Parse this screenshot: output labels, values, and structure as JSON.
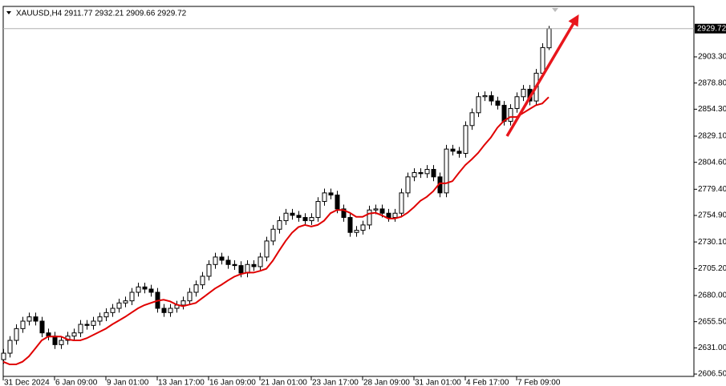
{
  "chart_data": {
    "type": "candlestick",
    "title": "XAUUSD,H4  2911.77 2932.21 2909.66 2929.72",
    "categories": [
      "31 Dec 2024",
      null,
      null,
      null,
      null,
      null,
      null,
      null,
      "6 Jan 09:00",
      null,
      null,
      null,
      null,
      null,
      null,
      null,
      "9 Jan 01:00",
      null,
      null,
      null,
      null,
      null,
      null,
      null,
      "13 Jan 17:00",
      null,
      null,
      null,
      null,
      null,
      null,
      null,
      "16 Jan 09:00",
      null,
      null,
      null,
      null,
      null,
      null,
      null,
      "21 Jan 01:00",
      null,
      null,
      null,
      null,
      null,
      null,
      null,
      "23 Jan 17:00",
      null,
      null,
      null,
      null,
      null,
      null,
      null,
      "28 Jan 09:00",
      null,
      null,
      null,
      null,
      null,
      null,
      null,
      "31 Jan 01:00",
      null,
      null,
      null,
      null,
      null,
      null,
      null,
      "4 Feb 17:00",
      null,
      null,
      null,
      null,
      null,
      null,
      null,
      "7 Feb 09:00",
      null,
      null,
      null,
      null,
      null
    ],
    "open": [
      2620,
      2626,
      2638,
      2649,
      2656,
      2660,
      2656,
      2645,
      2642,
      2634,
      2638,
      2642,
      2645,
      2653,
      2652,
      2656,
      2660,
      2664,
      2668,
      2673,
      2675,
      2683,
      2688,
      2686,
      2683,
      2668,
      2664,
      2668,
      2671,
      2675,
      2683,
      2690,
      2698,
      2709,
      2716,
      2713,
      2709,
      2708,
      2701,
      2709,
      2707,
      2716,
      2731,
      2742,
      2750,
      2757,
      2755,
      2753,
      2750,
      2753,
      2768,
      2776,
      2774,
      2761,
      2753,
      2739,
      2741,
      2746,
      2760,
      2761,
      2757,
      2753,
      2757,
      2776,
      2791,
      2795,
      2794,
      2798,
      2791,
      2776,
      2817,
      2815,
      2813,
      2839,
      2851,
      2866,
      2867,
      2862,
      2858,
      2843,
      2855,
      2866,
      2873,
      2862,
      2888,
      2911.77
    ],
    "high": [
      2630,
      2642,
      2653,
      2660,
      2664,
      2664,
      2660,
      2649,
      2646,
      2642,
      2646,
      2649,
      2657,
      2657,
      2660,
      2664,
      2668,
      2672,
      2677,
      2679,
      2687,
      2692,
      2692,
      2690,
      2687,
      2672,
      2672,
      2675,
      2679,
      2687,
      2694,
      2702,
      2713,
      2720,
      2720,
      2717,
      2713,
      2712,
      2713,
      2713,
      2720,
      2735,
      2746,
      2754,
      2761,
      2761,
      2759,
      2757,
      2757,
      2772,
      2780,
      2780,
      2778,
      2765,
      2757,
      2745,
      2750,
      2764,
      2765,
      2765,
      2761,
      2761,
      2780,
      2795,
      2799,
      2799,
      2802,
      2802,
      2795,
      2821,
      2821,
      2819,
      2843,
      2855,
      2870,
      2871,
      2871,
      2866,
      2862,
      2859,
      2870,
      2877,
      2877,
      2892,
      2916,
      2932.21
    ],
    "low": [
      2616,
      2622,
      2634,
      2645,
      2652,
      2652,
      2641,
      2638,
      2630,
      2630,
      2634,
      2638,
      2641,
      2648,
      2648,
      2652,
      2656,
      2660,
      2664,
      2669,
      2671,
      2679,
      2682,
      2679,
      2664,
      2660,
      2660,
      2664,
      2667,
      2671,
      2679,
      2686,
      2694,
      2705,
      2709,
      2705,
      2704,
      2697,
      2697,
      2703,
      2703,
      2712,
      2727,
      2738,
      2746,
      2751,
      2749,
      2746,
      2746,
      2749,
      2764,
      2770,
      2757,
      2749,
      2735,
      2735,
      2737,
      2742,
      2756,
      2753,
      2749,
      2749,
      2753,
      2772,
      2787,
      2790,
      2790,
      2787,
      2772,
      2772,
      2811,
      2809,
      2809,
      2835,
      2847,
      2862,
      2858,
      2854,
      2839,
      2839,
      2851,
      2862,
      2858,
      2858,
      2884,
      2909.66
    ],
    "close": [
      2626,
      2638,
      2649,
      2656,
      2660,
      2656,
      2645,
      2642,
      2634,
      2638,
      2642,
      2645,
      2653,
      2652,
      2656,
      2660,
      2664,
      2668,
      2673,
      2675,
      2683,
      2688,
      2686,
      2683,
      2668,
      2664,
      2668,
      2671,
      2675,
      2683,
      2690,
      2698,
      2709,
      2716,
      2713,
      2709,
      2708,
      2701,
      2709,
      2707,
      2716,
      2731,
      2742,
      2750,
      2757,
      2755,
      2753,
      2750,
      2753,
      2768,
      2776,
      2774,
      2761,
      2753,
      2739,
      2741,
      2746,
      2760,
      2761,
      2757,
      2753,
      2757,
      2776,
      2791,
      2795,
      2794,
      2798,
      2791,
      2776,
      2817,
      2815,
      2813,
      2839,
      2851,
      2866,
      2867,
      2862,
      2858,
      2843,
      2855,
      2866,
      2873,
      2862,
      2888,
      2912,
      2929.72
    ],
    "moving_average": {
      "color": "#e00000",
      "values": [
        2618,
        2615.5,
        2615.5,
        2618,
        2623,
        2630.4,
        2638,
        2641.6,
        2641.6,
        2641.6,
        2639,
        2638,
        2638,
        2640,
        2643,
        2646,
        2649,
        2653,
        2656.5,
        2660,
        2664,
        2668,
        2671,
        2673,
        2675,
        2676,
        2674.5,
        2671.5,
        2670,
        2671.5,
        2673,
        2677.5,
        2682,
        2686.5,
        2690,
        2694,
        2697.6,
        2700,
        2701.4,
        2701.4,
        2703,
        2705,
        2712.5,
        2722,
        2731,
        2738.7,
        2744,
        2746,
        2744.5,
        2746,
        2750,
        2757,
        2760,
        2760,
        2757.4,
        2753.6,
        2753.6,
        2756.6,
        2757.4,
        2755,
        2752,
        2752,
        2753.6,
        2757.4,
        2762.6,
        2768.6,
        2772.3,
        2777.5,
        2785,
        2785,
        2787,
        2794.7,
        2802,
        2807.4,
        2813.4,
        2821,
        2828,
        2837,
        2843.3,
        2847,
        2847,
        2850.7,
        2854.4,
        2858,
        2859.7,
        2865.6
      ]
    },
    "last_price": 2929.72,
    "ylim": [
      2604.3,
      2949
    ],
    "yticks": [
      {
        "value": 2606.5,
        "label": "2606.50"
      },
      {
        "value": 2631,
        "label": "2631.00"
      },
      {
        "value": 2655.5,
        "label": "2655.50"
      },
      {
        "value": 2680,
        "label": "2680.00"
      },
      {
        "value": 2705.2,
        "label": "2705.20"
      },
      {
        "value": 2730.1,
        "label": "2730.10"
      },
      {
        "value": 2754.9,
        "label": "2754.90"
      },
      {
        "value": 2779.4,
        "label": "2779.40"
      },
      {
        "value": 2804.6,
        "label": "2804.60"
      },
      {
        "value": 2829.1,
        "label": "2829.10"
      },
      {
        "value": 2854.3,
        "label": "2854.30"
      },
      {
        "value": 2878.8,
        "label": "2878.80"
      },
      {
        "value": 2903.3,
        "label": "2903.30"
      }
    ],
    "grid": false
  }
}
